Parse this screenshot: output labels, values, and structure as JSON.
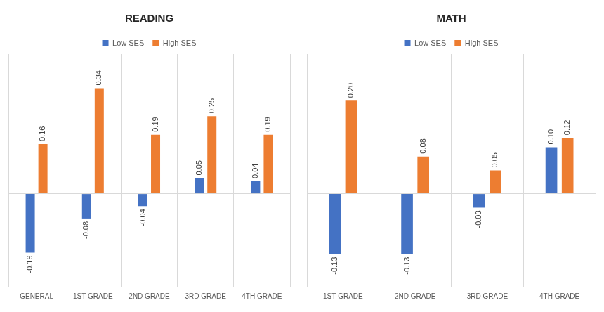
{
  "chart_data": [
    {
      "type": "bar",
      "title": "READING",
      "categories": [
        "GENERAL",
        "1ST GRADE",
        "2ND GRADE",
        "3RD GRADE",
        "4TH GRADE"
      ],
      "series": [
        {
          "name": "Low SES",
          "color": "#4472C4",
          "values": [
            -0.19,
            -0.08,
            -0.04,
            0.05,
            0.04
          ],
          "value_labels": [
            "-0.19",
            "-0.08",
            "-0.04",
            "0.05",
            "0.04"
          ]
        },
        {
          "name": "High SES",
          "color": "#ED7D31",
          "values": [
            0.16,
            0.34,
            0.19,
            0.25,
            0.19
          ],
          "value_labels": [
            "0.16",
            "0.34",
            "0.19",
            "0.25",
            "0.19"
          ]
        }
      ],
      "ylim": [
        -0.3,
        0.45
      ],
      "yticks": [
        0
      ],
      "grid": true,
      "legend": "top",
      "data_labels": true,
      "tick_labels": "x"
    },
    {
      "type": "bar",
      "title": "MATH",
      "categories": [
        "1ST GRADE",
        "2ND GRADE",
        "3RD GRADE",
        "4TH GRADE"
      ],
      "series": [
        {
          "name": "Low SES",
          "color": "#4472C4",
          "values": [
            -0.13,
            -0.13,
            -0.03,
            0.1
          ],
          "value_labels": [
            "-0.13",
            "-0.13",
            "-0.03",
            "0.10"
          ]
        },
        {
          "name": "High SES",
          "color": "#ED7D31",
          "values": [
            0.2,
            0.08,
            0.05,
            0.12
          ],
          "value_labels": [
            "0.20",
            "0.08",
            "0.05",
            "0.12"
          ]
        }
      ],
      "ylim": [
        -0.2,
        0.3
      ],
      "yticks": [
        0
      ],
      "grid": true,
      "legend": "top",
      "data_labels": true,
      "tick_labels": "x"
    }
  ]
}
